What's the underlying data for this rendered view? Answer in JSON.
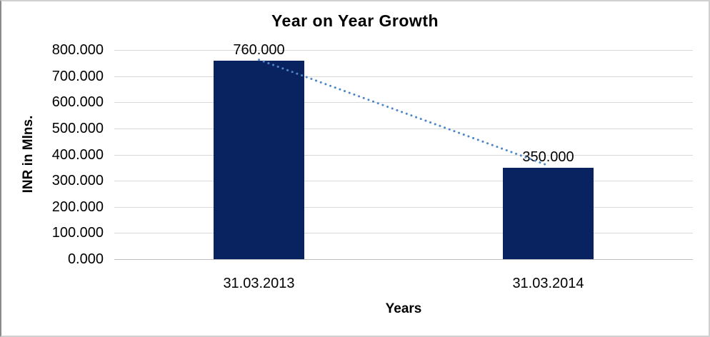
{
  "chart_data": {
    "type": "bar",
    "title": "Year on Year Growth",
    "xlabel": "Years",
    "ylabel": "INR in Mlns.",
    "categories": [
      "31.03.2013",
      "31.03.2014"
    ],
    "values": [
      760,
      350
    ],
    "data_labels": [
      "760.000",
      "350.000"
    ],
    "ylim": [
      0,
      800
    ],
    "ytick_step": 100,
    "y_ticks": [
      "0.000",
      "100.000",
      "200.000",
      "300.000",
      "400.000",
      "500.000",
      "600.000",
      "700.000",
      "800.000"
    ],
    "grid": true,
    "legend": "none",
    "trendline": {
      "style": "dotted",
      "connects": "bar tops",
      "color": "#4d87c7"
    },
    "colors": {
      "bar": "#08235f",
      "gridline": "#d9d9d9",
      "axis_line": "#c0c0c0",
      "text": "#000000",
      "border": "#d0d0d0"
    }
  }
}
